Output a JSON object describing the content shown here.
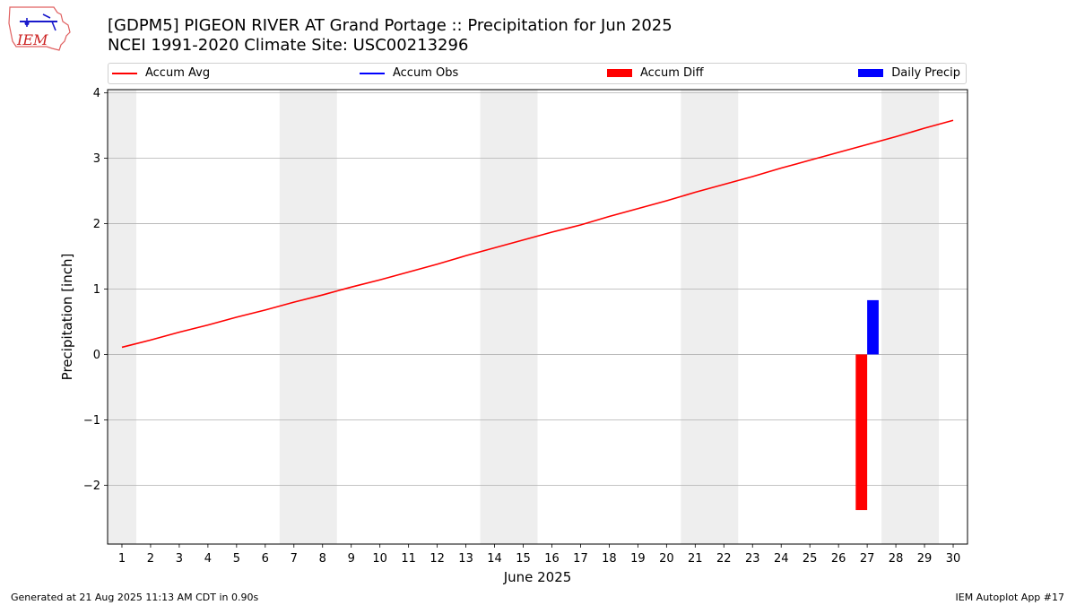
{
  "header": {
    "title_line1": "[GDPM5] PIGEON RIVER  AT Grand Portage :: Precipitation for Jun 2025",
    "title_line2": "NCEI 1991-2020 Climate Site: USC00213296",
    "logo_text": "IEM"
  },
  "legend": [
    {
      "label": "Accum Avg",
      "kind": "line",
      "color": "#ff0000"
    },
    {
      "label": "Accum Obs",
      "kind": "line",
      "color": "#0000ff"
    },
    {
      "label": "Accum Diff",
      "kind": "bar",
      "color": "#ff0000"
    },
    {
      "label": "Daily Precip",
      "kind": "bar",
      "color": "#0000ff"
    }
  ],
  "footer": {
    "left": "Generated at 21 Aug 2025 11:13 AM CDT in 0.90s",
    "right": "IEM Autoplot App #17"
  },
  "chart_data": {
    "type": "bar",
    "xlabel": "June 2025",
    "ylabel": "Precipitation [inch]",
    "xlim": [
      0.5,
      30.5
    ],
    "ylim": [
      -2.9,
      4.05
    ],
    "yticks": [
      -2,
      -1,
      0,
      1,
      2,
      3,
      4
    ],
    "ytick_labels": [
      "−2",
      "−1",
      "0",
      "1",
      "2",
      "3",
      "4"
    ],
    "x_categories": [
      "1",
      "2",
      "3",
      "4",
      "5",
      "6",
      "7",
      "8",
      "9",
      "10",
      "11",
      "12",
      "13",
      "14",
      "15",
      "16",
      "17",
      "18",
      "19",
      "20",
      "21",
      "22",
      "23",
      "24",
      "25",
      "26",
      "27",
      "28",
      "29",
      "30"
    ],
    "grid": "horizontal",
    "weekend_shading": [
      [
        0.5,
        1.5
      ],
      [
        6.5,
        8.5
      ],
      [
        13.5,
        15.5
      ],
      [
        20.5,
        22.5
      ],
      [
        27.5,
        29.5
      ]
    ],
    "series": [
      {
        "name": "Accum Avg",
        "type": "line",
        "color": "#ff0000",
        "x": [
          1,
          2,
          3,
          4,
          5,
          6,
          7,
          8,
          9,
          10,
          11,
          12,
          13,
          14,
          15,
          16,
          17,
          18,
          19,
          20,
          21,
          22,
          23,
          24,
          25,
          26,
          27,
          28,
          29,
          30
        ],
        "values": [
          0.11,
          0.22,
          0.34,
          0.45,
          0.57,
          0.68,
          0.8,
          0.91,
          1.03,
          1.14,
          1.26,
          1.38,
          1.51,
          1.63,
          1.75,
          1.87,
          1.98,
          2.11,
          2.23,
          2.35,
          2.48,
          2.6,
          2.72,
          2.85,
          2.97,
          3.09,
          3.21,
          3.33,
          3.46,
          3.58
        ]
      },
      {
        "name": "Accum Obs",
        "type": "line",
        "color": "#0000ff",
        "x": [],
        "values": []
      },
      {
        "name": "Accum Diff",
        "type": "bar",
        "color": "#ff0000",
        "x": [
          26.8
        ],
        "values": [
          -2.38
        ]
      },
      {
        "name": "Daily Precip",
        "type": "bar",
        "color": "#0000ff",
        "x": [
          27.2
        ],
        "values": [
          0.83
        ]
      }
    ]
  }
}
